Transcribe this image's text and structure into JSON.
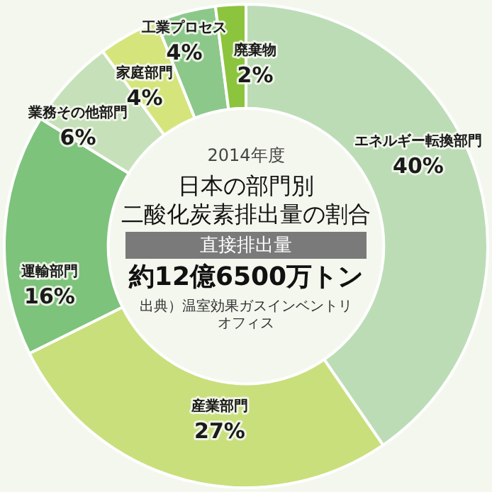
{
  "chart_data": {
    "type": "donut",
    "title": "日本の部門別二酸化炭素排出量の割合",
    "subtitle": "2014年度",
    "categories": [
      "エネルギー転換部門",
      "産業部門",
      "運輸部門",
      "業務その他部門",
      "家庭部門",
      "工業プロセス",
      "廃棄物"
    ],
    "values": [
      40,
      27,
      16,
      6,
      4,
      4,
      2
    ],
    "value_labels": [
      "40%",
      "27%",
      "16%",
      "6%",
      "4%",
      "4%",
      "2%"
    ],
    "colors": [
      "#bcdcb6",
      "#c9df7c",
      "#7dc37b",
      "#c6e1b9",
      "#d5e57c",
      "#8dc88b",
      "#8cc43e"
    ],
    "annotations": [
      "直接排出量",
      "約12億6500万トン",
      "出典）温室効果ガスインベントリオフィス"
    ],
    "legend": false
  }
}
